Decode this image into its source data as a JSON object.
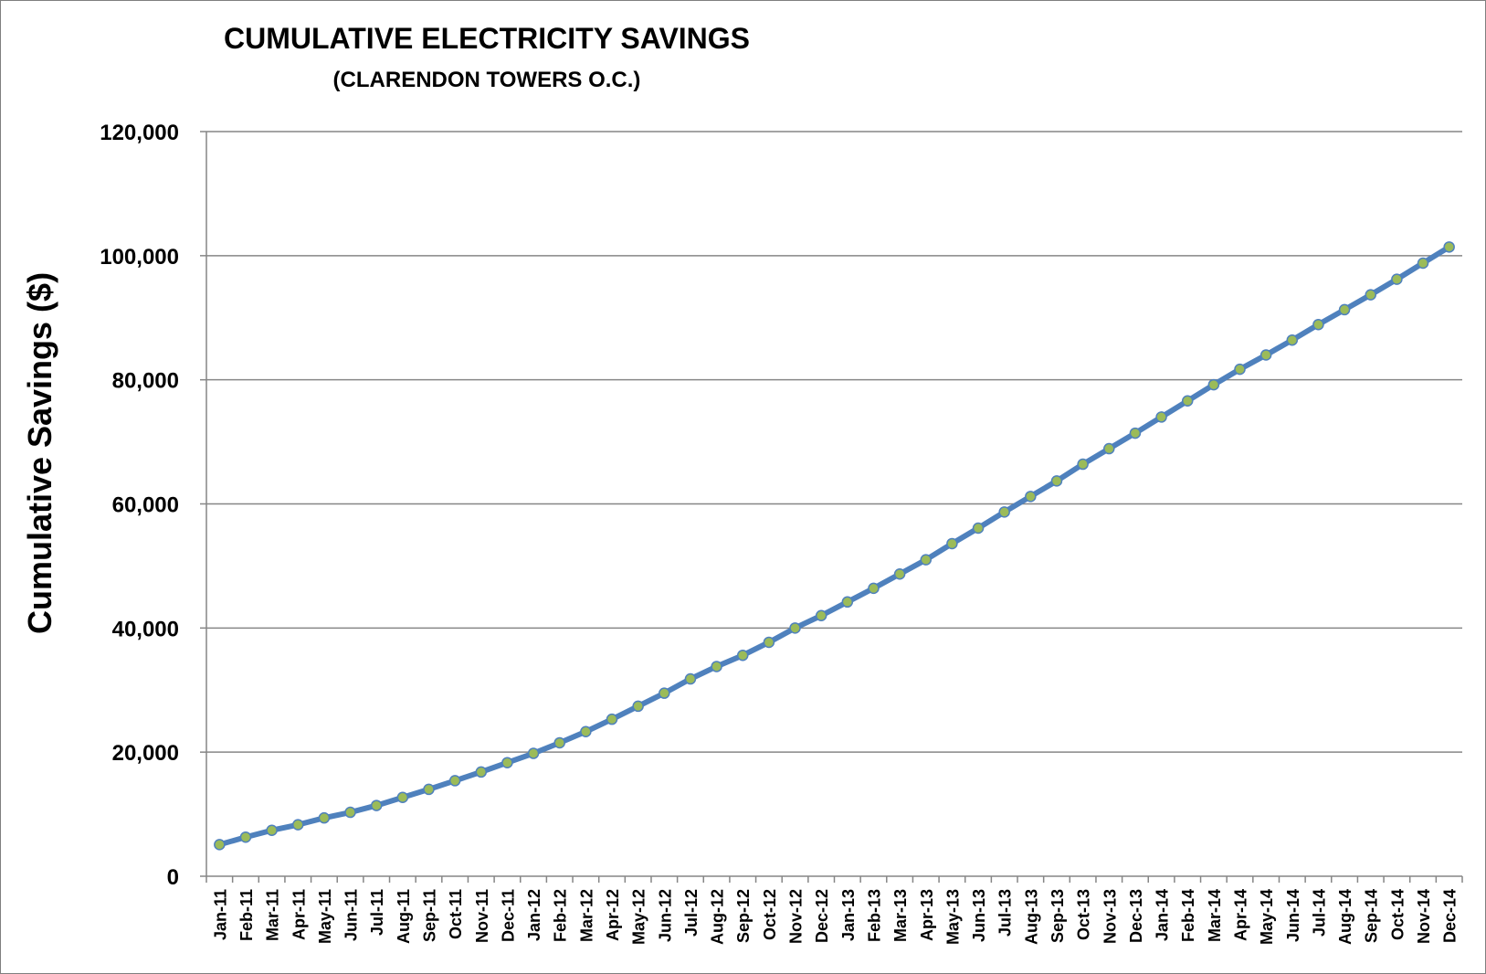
{
  "chart_data": {
    "type": "line",
    "title": "CUMULATIVE ELECTRICITY SAVINGS",
    "subtitle": "(CLARENDON TOWERS O.C.)",
    "xlabel": "",
    "ylabel": "Cumulative Savings ($)",
    "ylim": [
      0,
      120000
    ],
    "yticks": [
      0,
      20000,
      40000,
      60000,
      80000,
      100000,
      120000
    ],
    "ytick_labels": [
      "0",
      "20,000",
      "40,000",
      "60,000",
      "80,000",
      "100,000",
      "120,000"
    ],
    "grid": true,
    "legend": "none",
    "categories": [
      "Jan-11",
      "Feb-11",
      "Mar-11",
      "Apr-11",
      "May-11",
      "Jun-11",
      "Jul-11",
      "Aug-11",
      "Sep-11",
      "Oct-11",
      "Nov-11",
      "Dec-11",
      "Jan-12",
      "Feb-12",
      "Mar-12",
      "Apr-12",
      "May-12",
      "Jun-12",
      "Jul-12",
      "Aug-12",
      "Sep-12",
      "Oct-12",
      "Nov-12",
      "Dec-12",
      "Jan-13",
      "Feb-13",
      "Mar-13",
      "Apr-13",
      "May-13",
      "Jun-13",
      "Jul-13",
      "Aug-13",
      "Sep-13",
      "Oct-13",
      "Nov-13",
      "Dec-13",
      "Jan-14",
      "Feb-14",
      "Mar-14",
      "Apr-14",
      "May-14",
      "Jun-14",
      "Jul-14",
      "Aug-14",
      "Sep-14",
      "Oct-14",
      "Nov-14",
      "Dec-14"
    ],
    "series": [
      {
        "values": [
          5100,
          6300,
          7400,
          8300,
          9400,
          10300,
          11400,
          12700,
          14000,
          15400,
          16800,
          18300,
          19800,
          21500,
          23300,
          25300,
          27400,
          29500,
          31800,
          33800,
          35600,
          37700,
          40000,
          42000,
          44200,
          46400,
          48700,
          51000,
          53600,
          56100,
          58700,
          61200,
          63700,
          66400,
          68900,
          71400,
          74000,
          76600,
          79200,
          81700,
          84000,
          86400,
          88900,
          91300,
          93700,
          96200,
          98800,
          101400
        ]
      }
    ],
    "colors": {
      "line": "#4f81bd",
      "marker_fill": "#9bbb59",
      "marker_stroke": "#4f81bd",
      "grid": "#868686",
      "axis": "#868686"
    }
  }
}
